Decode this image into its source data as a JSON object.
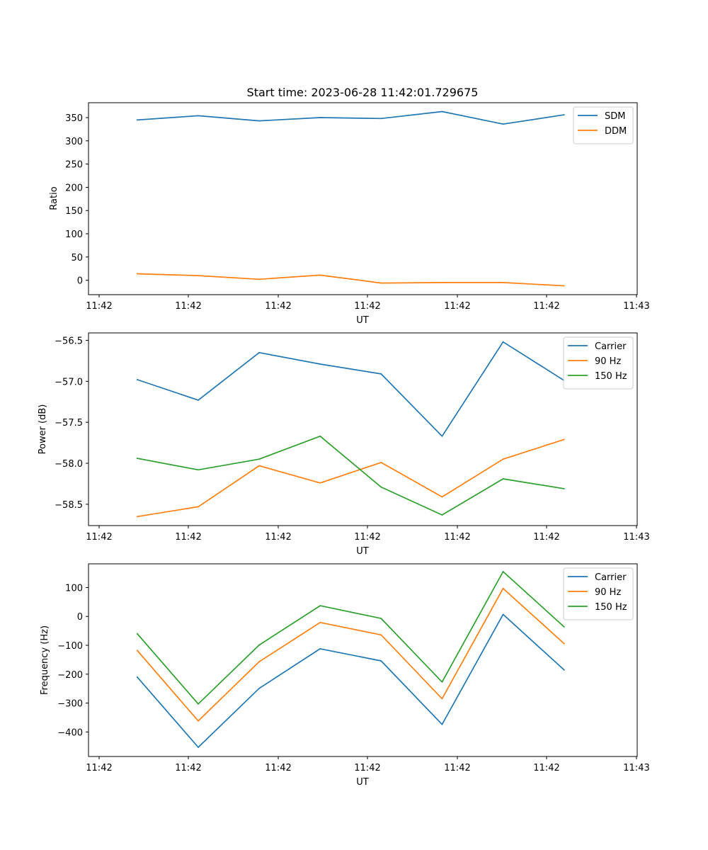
{
  "chart_data": [
    {
      "type": "line",
      "title": "Start time: 2023-06-28 11:42:01.729675",
      "xlabel": "UT",
      "ylabel": "Ratio",
      "x_tick_labels": [
        "11:42",
        "11:42",
        "11:42",
        "11:42",
        "11:42",
        "11:42",
        "11:43"
      ],
      "y_ticks": [
        0,
        50,
        100,
        150,
        200,
        250,
        300,
        350
      ],
      "ylim": [
        -31,
        382
      ],
      "x": [
        1,
        2,
        3,
        4,
        5,
        6,
        7,
        8
      ],
      "xlim": [
        0.2,
        9.2
      ],
      "legend_position": "top-right",
      "series": [
        {
          "name": "SDM",
          "color": "#1f77b4",
          "values": [
            345,
            354,
            343,
            350,
            348,
            363,
            336,
            356
          ]
        },
        {
          "name": "DDM",
          "color": "#ff7f0e",
          "values": [
            14,
            10,
            2,
            11,
            -6,
            -5,
            -5,
            -12
          ]
        }
      ]
    },
    {
      "type": "line",
      "title": "",
      "xlabel": "UT",
      "ylabel": "Power (dB)",
      "x_tick_labels": [
        "11:42",
        "11:42",
        "11:42",
        "11:42",
        "11:42",
        "11:42",
        "11:43"
      ],
      "y_ticks": [
        -58.5,
        -58.0,
        -57.5,
        -57.0,
        -56.5
      ],
      "y_tick_labels": [
        "−58.5",
        "−58.0",
        "−57.5",
        "−57.0",
        "−56.5"
      ],
      "ylim": [
        -58.76,
        -56.41
      ],
      "x": [
        1,
        2,
        3,
        4,
        5,
        6,
        7,
        8
      ],
      "xlim": [
        0.2,
        9.2
      ],
      "legend_position": "top-right",
      "series": [
        {
          "name": "Carrier",
          "color": "#1f77b4",
          "values": [
            -56.98,
            -57.23,
            -56.65,
            -56.79,
            -56.91,
            -57.67,
            -56.52,
            -56.99
          ]
        },
        {
          "name": "90 Hz",
          "color": "#ff7f0e",
          "values": [
            -58.65,
            -58.53,
            -58.03,
            -58.24,
            -57.99,
            -58.41,
            -57.95,
            -57.71
          ]
        },
        {
          "name": "150 Hz",
          "color": "#2ca02c",
          "values": [
            -57.94,
            -58.08,
            -57.95,
            -57.67,
            -58.29,
            -58.63,
            -58.19,
            -58.31
          ]
        }
      ]
    },
    {
      "type": "line",
      "title": "",
      "xlabel": "UT",
      "ylabel": "Frequency (Hz)",
      "x_tick_labels": [
        "11:42",
        "11:42",
        "11:42",
        "11:42",
        "11:42",
        "11:42",
        "11:43"
      ],
      "y_ticks": [
        -400,
        -300,
        -200,
        -100,
        0,
        100
      ],
      "y_tick_labels": [
        "−400",
        "−300",
        "−200",
        "−100",
        "0",
        "100"
      ],
      "ylim": [
        -485,
        182
      ],
      "x": [
        1,
        2,
        3,
        4,
        5,
        6,
        7,
        8
      ],
      "xlim": [
        0.2,
        9.2
      ],
      "legend_position": "top-right",
      "series": [
        {
          "name": "Carrier",
          "color": "#1f77b4",
          "values": [
            -210,
            -453,
            -249,
            -112,
            -154,
            -374,
            7,
            -185
          ]
        },
        {
          "name": "90 Hz",
          "color": "#ff7f0e",
          "values": [
            -118,
            -362,
            -157,
            -21,
            -64,
            -285,
            97,
            -94
          ]
        },
        {
          "name": "150 Hz",
          "color": "#2ca02c",
          "values": [
            -60,
            -303,
            -99,
            37,
            -7,
            -227,
            155,
            -36
          ]
        }
      ]
    }
  ]
}
